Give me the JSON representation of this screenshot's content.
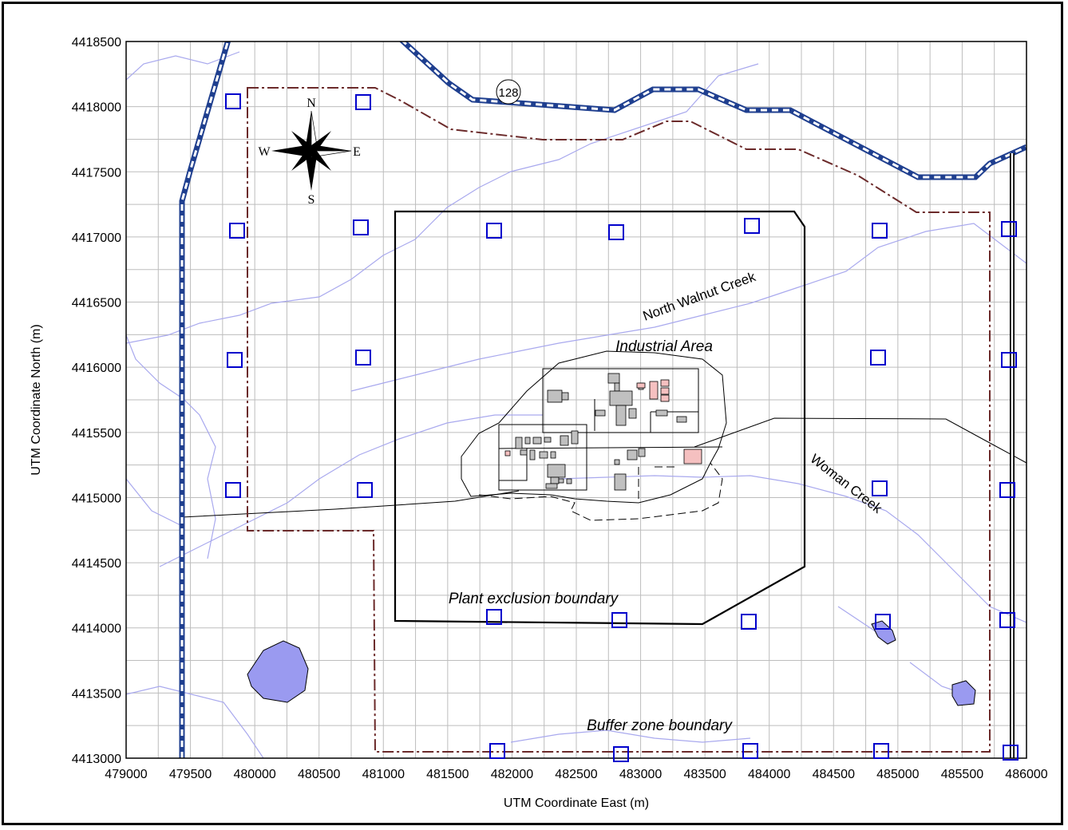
{
  "axes": {
    "xlabel": "UTM Coordinate East (m)",
    "ylabel": "UTM Coordinate North (m)",
    "x_ticks": [
      "479000",
      "479500",
      "480000",
      "480500",
      "481000",
      "481500",
      "482000",
      "482500",
      "483000",
      "483500",
      "484000",
      "484500",
      "485000",
      "485500",
      "486000"
    ],
    "y_ticks": [
      "4418500",
      "4418000",
      "4417500",
      "4417000",
      "4416500",
      "4416000",
      "4415500",
      "4415000",
      "4414500",
      "4414000",
      "4413500",
      "4413000"
    ]
  },
  "labels": {
    "industrial_area": "Industrial Area",
    "plant_exclusion": "Plant exclusion boundary",
    "buffer_zone": "Buffer zone boundary",
    "north_walnut_creek": "North Walnut Creek",
    "woman_creek": "Woman Creek",
    "route_number": "128"
  },
  "compass": {
    "n": "N",
    "s": "S",
    "e": "E",
    "w": "W"
  },
  "colors": {
    "buffer_boundary": "#6b2a2a",
    "plant_boundary": "#000000",
    "roads": "#1f3f8f",
    "creeks": "#a9a9ee",
    "ponds": "#9a9af0",
    "receptors": "#0000cc",
    "grid": "#bdbdbd",
    "buildings_gray": "#c0c0c0",
    "buildings_pink": "#f5c0c0"
  }
}
